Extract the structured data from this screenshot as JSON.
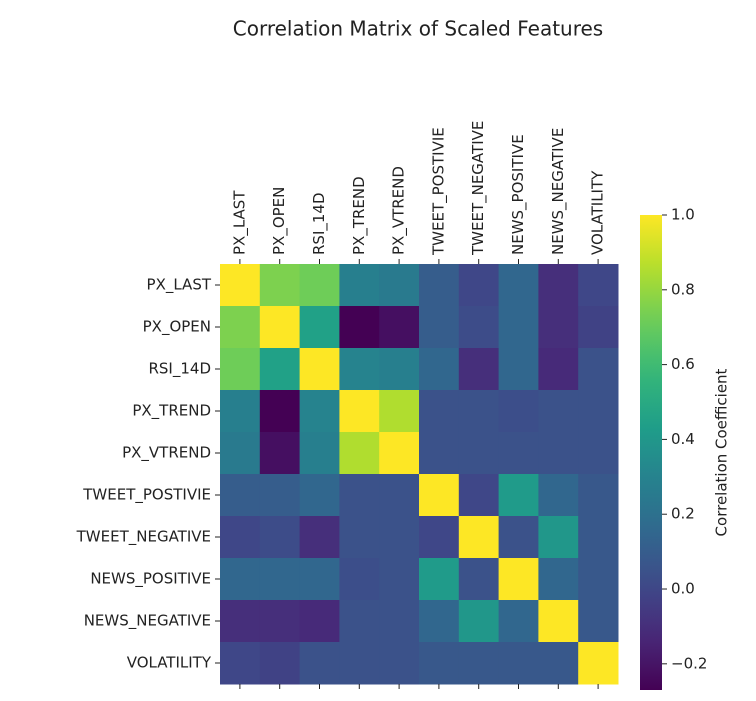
{
  "chart_data": {
    "type": "heatmap",
    "title": "Correlation Matrix of Scaled Features",
    "categories": [
      "PX_LAST",
      "PX_OPEN",
      "RSI_14D",
      "PX_TREND",
      "PX_VTREND",
      "TWEET_POSTIVIE",
      "TWEET_NEGATIVE",
      "NEWS_POSITIVE",
      "NEWS_NEGATIVE",
      "VOLATILITY"
    ],
    "matrix": [
      [
        1.0,
        0.75,
        0.72,
        0.28,
        0.25,
        0.1,
        0.0,
        0.15,
        -0.1,
        0.0
      ],
      [
        0.75,
        1.0,
        0.45,
        -0.27,
        -0.22,
        0.1,
        0.02,
        0.15,
        -0.1,
        -0.02
      ],
      [
        0.72,
        0.45,
        1.0,
        0.3,
        0.28,
        0.15,
        -0.1,
        0.15,
        -0.12,
        0.05
      ],
      [
        0.28,
        -0.27,
        0.3,
        1.0,
        0.85,
        0.05,
        0.05,
        0.03,
        0.05,
        0.05
      ],
      [
        0.25,
        -0.22,
        0.28,
        0.85,
        1.0,
        0.05,
        0.05,
        0.05,
        0.05,
        0.05
      ],
      [
        0.1,
        0.1,
        0.15,
        0.05,
        0.05,
        1.0,
        0.0,
        0.42,
        0.15,
        0.08
      ],
      [
        0.0,
        0.02,
        -0.1,
        0.05,
        0.05,
        0.0,
        1.0,
        0.05,
        0.4,
        0.08
      ],
      [
        0.15,
        0.15,
        0.15,
        0.03,
        0.05,
        0.42,
        0.05,
        1.0,
        0.15,
        0.08
      ],
      [
        -0.1,
        -0.1,
        -0.12,
        0.05,
        0.05,
        0.15,
        0.4,
        0.15,
        1.0,
        0.08
      ],
      [
        0.0,
        -0.02,
        0.05,
        0.05,
        0.05,
        0.08,
        0.08,
        0.08,
        0.08,
        1.0
      ]
    ],
    "colormap": "viridis",
    "colorbar_label": "Correlation Coefficient",
    "clim": [
      -0.27,
      1.0
    ],
    "cticks": [
      {
        "value": -0.2,
        "label": "−0.2"
      },
      {
        "value": 0,
        "label": "0.0"
      },
      0.2,
      0.4,
      0.6,
      0.8,
      {
        "value": 1.0,
        "label": "1.0"
      }
    ]
  }
}
